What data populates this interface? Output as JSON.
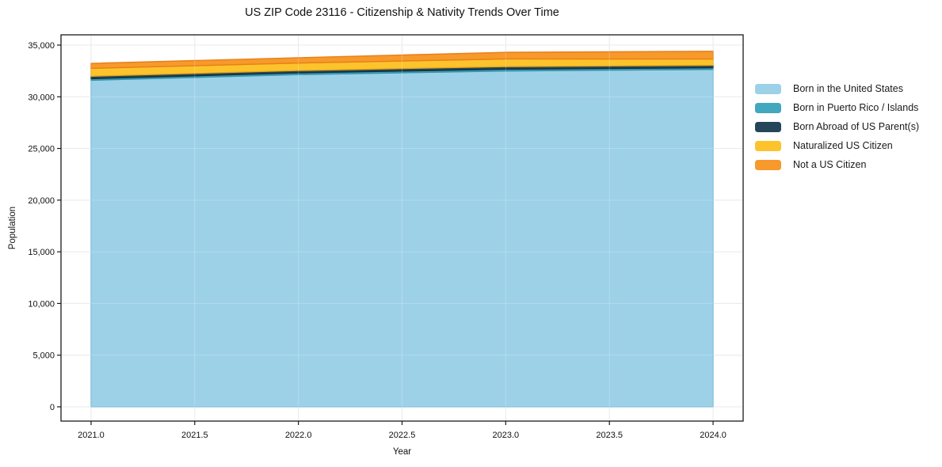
{
  "title": "US ZIP Code 23116 - Citizenship & Nativity Trends Over Time",
  "chart_data": {
    "type": "area",
    "stacked": true,
    "x": [
      2021,
      2022,
      2023,
      2024
    ],
    "series": [
      {
        "name": "Born in the United States",
        "values": [
          31600,
          32150,
          32500,
          32650
        ],
        "color": "#9dd1e8",
        "edge": "#74b9dc"
      },
      {
        "name": "Born in Puerto Rico / Islands",
        "values": [
          150,
          160,
          170,
          160
        ],
        "color": "#41a8c0",
        "edge": "#2f93ab"
      },
      {
        "name": "Born Abroad of US Parent(s)",
        "values": [
          240,
          230,
          250,
          240
        ],
        "color": "#25465a",
        "edge": "#152d3c"
      },
      {
        "name": "Naturalized US Citizen",
        "values": [
          760,
          720,
          740,
          600
        ],
        "color": "#fcc32d",
        "edge": "#e8a714"
      },
      {
        "name": "Not a US Citizen",
        "values": [
          480,
          520,
          640,
          750
        ],
        "color": "#f7992b",
        "edge": "#e87f17"
      }
    ],
    "title": "US ZIP Code 23116 - Citizenship & Nativity Trends Over Time",
    "xlabel": "Year",
    "ylabel": "Population",
    "xticks": [
      2021.0,
      2021.5,
      2022.0,
      2022.5,
      2023.0,
      2023.5,
      2024.0
    ],
    "xtick_labels": [
      "2021.0",
      "2021.5",
      "2022.0",
      "2022.5",
      "2023.0",
      "2023.5",
      "2024.0"
    ],
    "yticks": [
      0,
      5000,
      10000,
      15000,
      20000,
      25000,
      30000,
      35000
    ],
    "ytick_labels": [
      "0",
      "5,000",
      "10,000",
      "15,000",
      "20,000",
      "25,000",
      "30,000",
      "35,000"
    ],
    "xlim": [
      2020.855,
      2024.145
    ],
    "ylim": [
      -1380,
      35994
    ],
    "grid": true,
    "grid_color": "#e4e4e4",
    "spine_color": "#1a1a1a",
    "legend_position": "right-outside"
  }
}
